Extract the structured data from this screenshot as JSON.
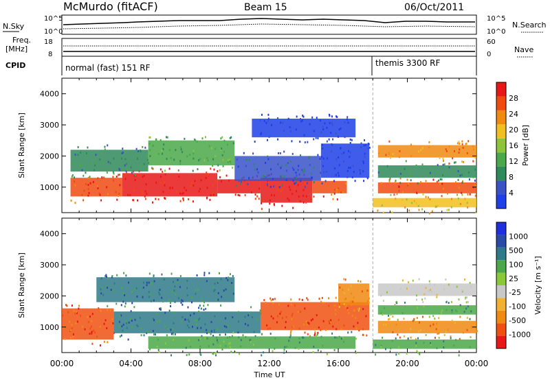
{
  "header": {
    "station": "McMurdo (fitACF)",
    "beam": "Beam 15",
    "date": "06/Oct/2011"
  },
  "noise_panel": {
    "left_label": "N.Sky",
    "right_label": "N.Search",
    "left_ticks": [
      "10^5",
      "10^0"
    ],
    "right_ticks": [
      "10^5",
      "10^0"
    ]
  },
  "freq_panel": {
    "left_label_1": "Freq.",
    "left_label_2": "[MHz]",
    "right_label": "Nave",
    "left_ticks": [
      "18",
      "8"
    ],
    "right_ticks": [
      "60",
      "0"
    ]
  },
  "cpid_panel": {
    "label": "CPID",
    "modes": [
      {
        "text": "normal (fast) 151 RF",
        "start_hour": 0
      },
      {
        "text": "themis 3300 RF",
        "start_hour": 18
      }
    ]
  },
  "colors": {
    "power": [
      "#1f3fe8",
      "#3a52c8",
      "#2f8a5a",
      "#4aa84a",
      "#8cc43a",
      "#f0c020",
      "#f08a10",
      "#f04a10",
      "#e81818"
    ],
    "velocity": [
      "#e81818",
      "#f05010",
      "#f08a10",
      "#f0b030",
      "#c8c8c8",
      "#8ac83a",
      "#4aa84a",
      "#2f7a8a",
      "#2a4aa8",
      "#1f2fe0"
    ]
  },
  "chart_data": [
    {
      "type": "heatmap",
      "title": "Power",
      "ylabel": "Slant Range [km]",
      "xlabel": "Time UT",
      "x_ticks": [
        "00:00",
        "04:00",
        "08:00",
        "12:00",
        "16:00",
        "20:00",
        "00:00"
      ],
      "y_ticks": [
        "1000",
        "2000",
        "3000",
        "4000"
      ],
      "xlim_hours": [
        0,
        24
      ],
      "ylim_km": [
        180,
        4500
      ],
      "colorbar_label": "Power [dB]",
      "colorbar_ticks": [
        "4",
        "8",
        "12",
        "16",
        "20",
        "24",
        "28"
      ],
      "bands": [
        {
          "t0": 0.5,
          "t1": 3.5,
          "r0": 700,
          "r1": 1300,
          "level": 7
        },
        {
          "t0": 3.5,
          "t1": 9.0,
          "r0": 700,
          "r1": 1450,
          "level": 8
        },
        {
          "t0": 9.0,
          "t1": 11.5,
          "r0": 800,
          "r1": 1250,
          "level": 8
        },
        {
          "t0": 11.5,
          "t1": 14.5,
          "r0": 500,
          "r1": 1300,
          "level": 8
        },
        {
          "t0": 14.5,
          "t1": 16.5,
          "r0": 800,
          "r1": 1200,
          "level": 7
        },
        {
          "t0": 0.5,
          "t1": 5.0,
          "r0": 1500,
          "r1": 2200,
          "level": 2
        },
        {
          "t0": 5.0,
          "t1": 10.0,
          "r0": 1700,
          "r1": 2500,
          "level": 3
        },
        {
          "t0": 10.0,
          "t1": 15.0,
          "r0": 1200,
          "r1": 2000,
          "level": 1
        },
        {
          "t0": 15.0,
          "t1": 17.8,
          "r0": 1300,
          "r1": 2400,
          "level": 0
        },
        {
          "t0": 18.3,
          "t1": 24.0,
          "r0": 800,
          "r1": 1150,
          "level": 7
        },
        {
          "t0": 18.3,
          "t1": 24.0,
          "r0": 1300,
          "r1": 1700,
          "level": 2
        },
        {
          "t0": 18.3,
          "t1": 24.0,
          "r0": 1950,
          "r1": 2350,
          "level": 6
        },
        {
          "t0": 18.0,
          "t1": 24.0,
          "r0": 350,
          "r1": 650,
          "level": 5
        },
        {
          "t0": 11.0,
          "t1": 17.0,
          "r0": 2600,
          "r1": 3200,
          "level": 0
        }
      ]
    },
    {
      "type": "heatmap",
      "title": "Velocity",
      "ylabel": "Slant Range [km]",
      "xlabel": "Time UT",
      "x_ticks": [
        "00:00",
        "04:00",
        "08:00",
        "12:00",
        "16:00",
        "20:00",
        "00:00"
      ],
      "y_ticks": [
        "1000",
        "2000",
        "3000",
        "4000"
      ],
      "xlim_hours": [
        0,
        24
      ],
      "ylim_km": [
        180,
        4500
      ],
      "colorbar_label": "Velocity [m s⁻¹]",
      "colorbar_ticks": [
        "1000",
        "500",
        "100",
        "25",
        "-25",
        "-100",
        "-500",
        "-1000"
      ],
      "bands": [
        {
          "t0": 0.0,
          "t1": 3.0,
          "r0": 600,
          "r1": 1600,
          "level": 1
        },
        {
          "t0": 3.0,
          "t1": 11.5,
          "r0": 800,
          "r1": 1500,
          "level": 7
        },
        {
          "t0": 11.5,
          "t1": 17.8,
          "r0": 900,
          "r1": 1800,
          "level": 1
        },
        {
          "t0": 16.0,
          "t1": 17.8,
          "r0": 1700,
          "r1": 2400,
          "level": 2
        },
        {
          "t0": 2.0,
          "t1": 10.0,
          "r0": 1800,
          "r1": 2600,
          "level": 7
        },
        {
          "t0": 18.3,
          "t1": 24.0,
          "r0": 2000,
          "r1": 2400,
          "level": 4
        },
        {
          "t0": 18.3,
          "t1": 24.0,
          "r0": 800,
          "r1": 1200,
          "level": 2
        },
        {
          "t0": 18.3,
          "t1": 24.0,
          "r0": 1400,
          "r1": 1700,
          "level": 6
        },
        {
          "t0": 18.0,
          "t1": 24.0,
          "r0": 300,
          "r1": 600,
          "level": 6
        },
        {
          "t0": 5.0,
          "t1": 17.0,
          "r0": 300,
          "r1": 700,
          "level": 6
        }
      ]
    }
  ]
}
